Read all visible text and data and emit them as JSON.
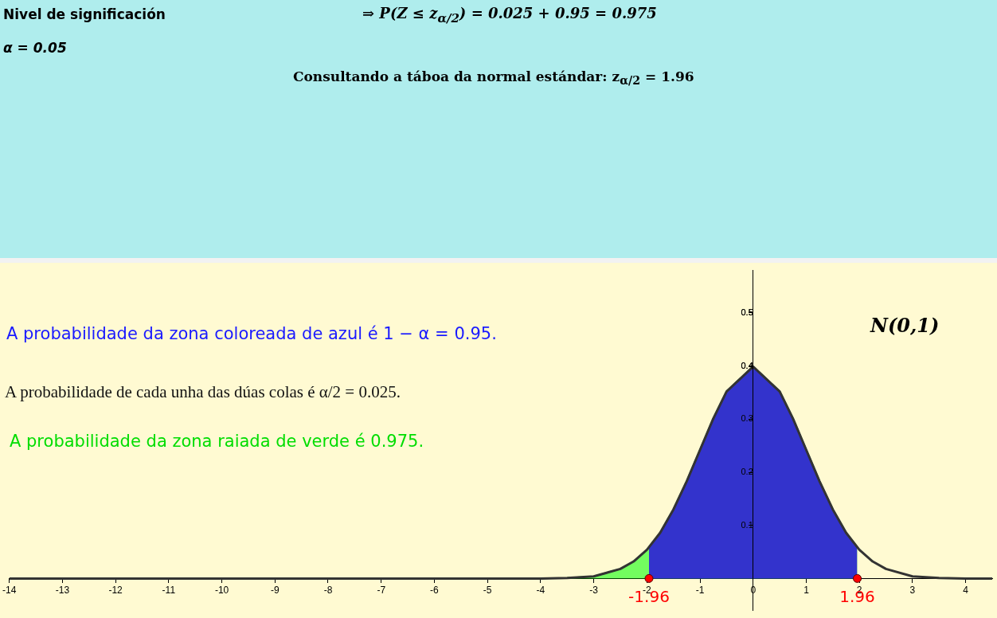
{
  "chart_data": {
    "type": "area",
    "title": "Nivel de significación",
    "subtitle": "α = 0.05",
    "annotations": [
      "⇒  P(Z ≤ z$_{α/2}$) = 0.025 + 0.95 = 0.975",
      "Consultando a táboa da normal estándar: z$_{α/2}$ = 1.96",
      "A probabilidade da zona coloreada de azul é 1 − α = 0.95.",
      "A probabilidade de cada unha das dúas colas é α/2 = 0.025.",
      "A probabilidade da zona raiada de verde é 0.975.",
      "N(0,1)",
      {
        "text": "-1.96",
        "x": -1.96,
        "y": 0
      },
      {
        "text": "1.96",
        "x": 1.96,
        "y": 0
      }
    ],
    "xlim": [
      -14,
      4.5
    ],
    "ylim": [
      -0.06,
      0.58
    ],
    "xticks": [
      -14,
      -13,
      -12,
      -11,
      -10,
      -9,
      -8,
      -7,
      -6,
      -5,
      -4,
      -3,
      -2,
      -1,
      0,
      1,
      2,
      3,
      4
    ],
    "yticks": [
      0.1,
      0.2,
      0.3,
      0.4,
      0.5
    ],
    "grid": false,
    "legend": false,
    "series": [
      {
        "color": "#00ff00",
        "x": [
          -3.5,
          -3,
          -2.5,
          -2.25,
          -2,
          -1.96,
          -1.75,
          -1.5,
          -1.25,
          -1,
          -0.75,
          -0.5,
          0,
          0.5,
          0.75,
          1,
          1.25,
          1.5,
          1.75,
          1.96
        ],
        "values": [
          0.001,
          0.004,
          0.018,
          0.032,
          0.054,
          0.058,
          0.086,
          0.13,
          0.183,
          0.242,
          0.301,
          0.352,
          0.399,
          0.352,
          0.301,
          0.242,
          0.183,
          0.13,
          0.086,
          0.058
        ]
      },
      {
        "color": "#3333cc",
        "x": [
          -1.96,
          -1.75,
          -1.5,
          -1.25,
          -1,
          -0.75,
          -0.5,
          0,
          0.5,
          0.75,
          1,
          1.25,
          1.5,
          1.75,
          1.96
        ],
        "values": [
          0.058,
          0.086,
          0.13,
          0.183,
          0.242,
          0.301,
          0.352,
          0.399,
          0.352,
          0.301,
          0.242,
          0.183,
          0.13,
          0.086,
          0.058
        ]
      },
      {
        "type": "line",
        "color": "#333333",
        "x": [
          -14,
          -4.5,
          -4,
          -3.5,
          -3,
          -2.5,
          -2.25,
          -2,
          -1.75,
          -1.5,
          -1.25,
          -1,
          -0.75,
          -0.5,
          0,
          0.5,
          0.75,
          1,
          1.25,
          1.5,
          1.75,
          2,
          2.25,
          2.5,
          3,
          3.5,
          4,
          4.5
        ],
        "values": [
          0,
          0,
          0,
          0.001,
          0.004,
          0.018,
          0.032,
          0.054,
          0.086,
          0.13,
          0.183,
          0.242,
          0.301,
          0.352,
          0.399,
          0.352,
          0.301,
          0.242,
          0.183,
          0.13,
          0.086,
          0.054,
          0.032,
          0.018,
          0.004,
          0.001,
          0,
          0
        ]
      },
      {
        "type": "scatter",
        "color": "#ff0000",
        "x": [
          -1.96,
          1.96
        ],
        "values": [
          0,
          0
        ]
      }
    ]
  }
}
